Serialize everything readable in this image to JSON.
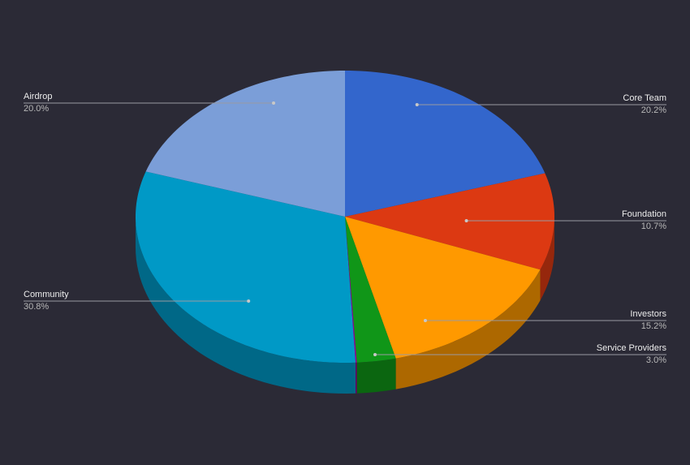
{
  "chart_data": {
    "type": "pie",
    "style": "3d",
    "title": "",
    "legend": "labels with leader lines",
    "slices": [
      {
        "label": "Core Team",
        "value": 20.2,
        "display": "20.2%",
        "color": "#3366cc",
        "side": "right"
      },
      {
        "label": "Foundation",
        "value": 10.7,
        "display": "10.7%",
        "color": "#dc3912",
        "side": "right"
      },
      {
        "label": "Investors",
        "value": 15.2,
        "display": "15.2%",
        "color": "#ff9900",
        "side": "right"
      },
      {
        "label": "Service Providers",
        "value": 3.0,
        "display": "3.0%",
        "color": "#109618",
        "side": "right"
      },
      {
        "label": "",
        "value": 0.1,
        "display": "",
        "color": "#990099",
        "side": "none"
      },
      {
        "label": "Community",
        "value": 30.8,
        "display": "30.8%",
        "color": "#0099c6",
        "side": "left"
      },
      {
        "label": "Airdrop",
        "value": 20.0,
        "display": "20.0%",
        "color": "#7b9ed8",
        "side": "left"
      }
    ]
  },
  "colors": {
    "background": "#2b2a36",
    "label_text": "#ececec",
    "percent_text": "#b8b8b8",
    "leader_line": "#9a9aa2"
  }
}
